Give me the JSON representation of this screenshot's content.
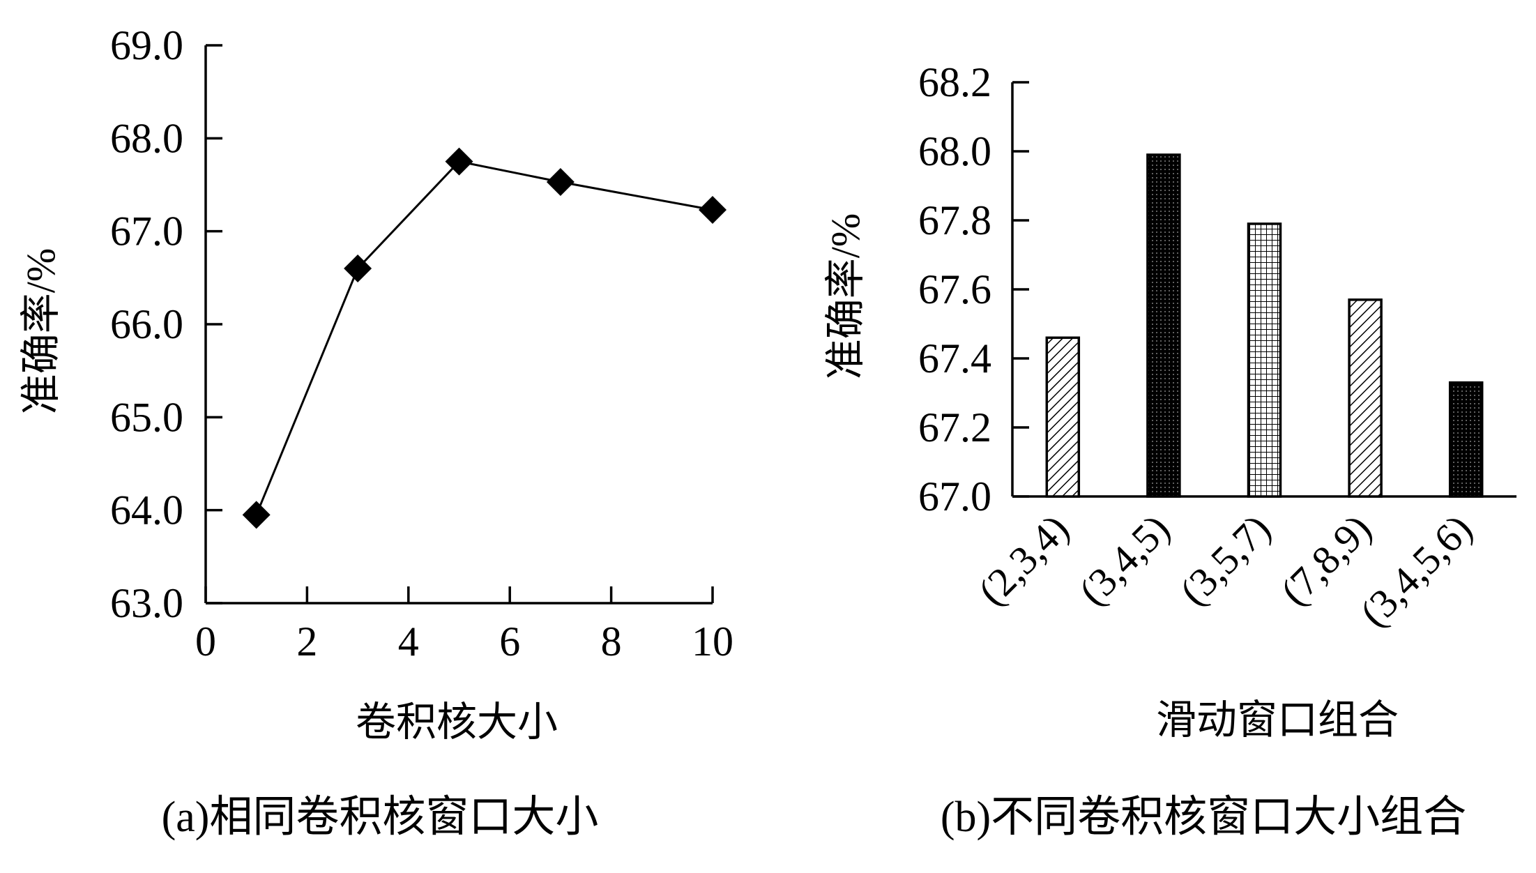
{
  "chart_data": [
    {
      "type": "line",
      "caption": "(a)相同卷积核窗口大小",
      "xlabel": "卷积核大小",
      "ylabel": "准确率/%",
      "xlim": [
        0,
        10
      ],
      "ylim": [
        63.0,
        69.0
      ],
      "xticks": [
        "0",
        "2",
        "4",
        "6",
        "8",
        "10"
      ],
      "yticks": [
        "63.0",
        "64.0",
        "65.0",
        "66.0",
        "67.0",
        "68.0",
        "69.0"
      ],
      "marker": "diamond",
      "color": "#000000",
      "x": [
        1,
        3,
        5,
        7,
        10
      ],
      "y": [
        63.95,
        66.6,
        67.75,
        67.53,
        67.23
      ]
    },
    {
      "type": "bar",
      "caption": "(b)不同卷积核窗口大小组合",
      "xlabel": "滑动窗口组合",
      "ylabel": "准确率/%",
      "ylim": [
        67.0,
        68.2
      ],
      "yticks": [
        "67.0",
        "67.2",
        "67.4",
        "67.6",
        "67.8",
        "68.0",
        "68.2"
      ],
      "categories": [
        "(2,3,4)",
        "(3,4,5)",
        "(3,5,7)",
        "(7,8,9)",
        "(3,4,5,6)"
      ],
      "values": [
        67.46,
        67.99,
        67.79,
        67.57,
        67.33
      ],
      "colors": [
        "#a8dcc4",
        "#7a2fa8",
        "#b9c9a4",
        "#a9dce8",
        "#3f5e2a"
      ],
      "patterns": [
        "diagonal",
        "dots",
        "grid",
        "diagonal",
        "dots"
      ]
    }
  ]
}
